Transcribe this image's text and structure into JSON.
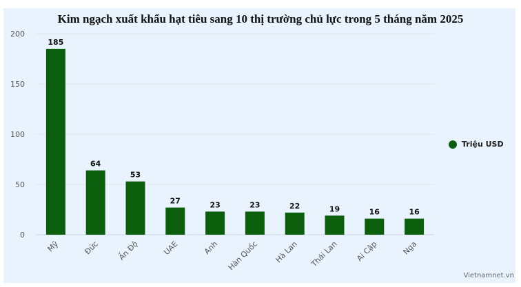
{
  "chart_data": {
    "type": "bar",
    "title": "Kim ngạch xuất khẩu hạt tiêu sang 10 thị trường chủ lực trong 5 tháng năm 2025",
    "categories": [
      "Mỹ",
      "Đức",
      "Ấn Độ",
      "UAE",
      "Anh",
      "Hàn Quốc",
      "Hà Lan",
      "Thái Lan",
      "Ai Cập",
      "Nga"
    ],
    "series": [
      {
        "name": "Triệu USD",
        "values": [
          185,
          64,
          53,
          27,
          23,
          23,
          22,
          19,
          16,
          16
        ],
        "color": "#0b5e0b"
      }
    ],
    "ylim": [
      0,
      200
    ],
    "yticks": [
      0,
      50,
      100,
      150,
      200
    ],
    "grid": true,
    "legend": "right",
    "xlabel": "",
    "ylabel": ""
  },
  "source": "Vietnamnet.vn",
  "background_color": "#e8f3fd"
}
